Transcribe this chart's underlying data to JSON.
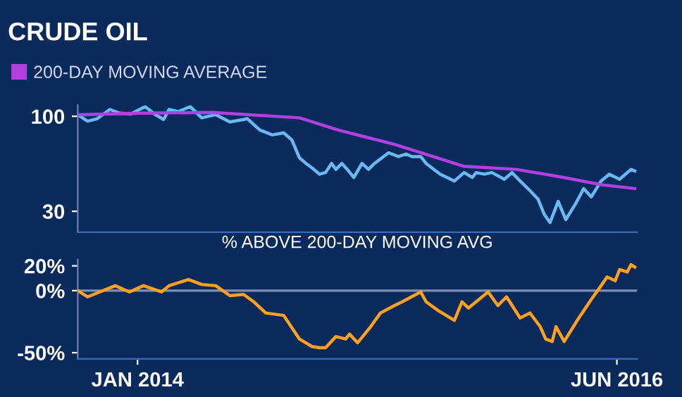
{
  "chart_data": [
    {
      "type": "line",
      "title": "CRUDE OIL",
      "log": true,
      "legend": "top left",
      "tick_labels": "y",
      "xlim": [
        "2013-09-13",
        "2016-07-08"
      ],
      "ylim": [
        23,
        115
      ],
      "yticks": [
        30,
        100
      ],
      "series": [
        {
          "color": "#6ab8f5",
          "x": [
            "2013-09-13",
            "2013-10-01",
            "2013-10-19",
            "2013-11-11",
            "2013-11-29",
            "2013-12-20",
            "2014-01-15",
            "2014-02-03",
            "2014-02-18",
            "2014-02-28",
            "2014-03-17",
            "2014-04-08",
            "2014-04-29",
            "2014-05-25",
            "2014-06-20",
            "2014-07-15",
            "2014-07-22",
            "2014-08-14",
            "2014-09-06",
            "2014-09-27",
            "2014-10-12",
            "2014-10-26",
            "2014-11-07",
            "2014-11-18",
            "2014-12-02",
            "2014-12-13",
            "2014-12-24",
            "2015-01-01",
            "2015-01-12",
            "2015-01-22",
            "2015-02-03",
            "2015-02-18",
            "2015-03-02",
            "2015-03-13",
            "2015-04-08",
            "2015-04-26",
            "2015-05-10",
            "2015-05-21",
            "2015-06-06",
            "2015-06-16",
            "2015-07-12",
            "2015-08-07",
            "2015-08-25",
            "2015-09-09",
            "2015-09-16",
            "2015-10-01",
            "2015-10-15",
            "2015-11-07",
            "2015-11-21",
            "2015-12-06",
            "2015-12-24",
            "2016-01-08",
            "2016-01-19",
            "2016-01-30",
            "2016-02-14",
            "2016-02-28",
            "2016-03-17",
            "2016-04-01",
            "2016-04-15",
            "2016-05-03",
            "2016-05-18",
            "2016-06-06",
            "2016-06-27",
            "2016-07-04"
          ],
          "values": [
            102,
            94,
            97,
            109,
            104,
            103,
            113,
            102,
            96,
            109,
            106,
            113,
            98,
            102,
            93,
            96,
            97,
            84,
            79,
            81,
            74,
            59,
            55,
            52,
            48,
            49,
            55,
            51,
            55,
            51,
            46,
            55,
            51,
            55,
            63,
            60,
            62,
            60,
            60,
            55,
            48,
            44,
            49,
            46,
            49,
            48,
            49,
            45,
            49,
            44,
            39,
            35,
            29,
            26,
            34,
            27,
            33,
            40,
            36,
            44,
            48,
            45,
            51,
            50
          ]
        },
        {
          "name": "200-DAY MOVING AVERAGE",
          "color": "#b040e0",
          "x": [
            "2013-09-13",
            "2014-01-08",
            "2014-05-18",
            "2014-10-26",
            "2015-01-05",
            "2015-04-19",
            "2015-08-25",
            "2015-11-29",
            "2016-02-25",
            "2016-05-03",
            "2016-07-04"
          ],
          "values": [
            102,
            104,
            105,
            98,
            84,
            70,
            53,
            51,
            46,
            42,
            40
          ]
        }
      ]
    },
    {
      "type": "line",
      "title": "% ABOVE 200-DAY MOVING AVG",
      "xlim": [
        "2013-09-13",
        "2016-07-08"
      ],
      "ylim": [
        -55,
        25
      ],
      "xticks": [
        {
          "value": "2014-01-01",
          "label": "JAN 2014"
        },
        {
          "value": "2016-06-01",
          "label": "JUN 2016"
        }
      ],
      "yticks": [
        {
          "value": -50,
          "label": "-50%"
        },
        {
          "value": 0,
          "label": "0%"
        },
        {
          "value": 20,
          "label": "20%"
        }
      ],
      "ref_lines": [
        {
          "axis": "y",
          "value": 0,
          "color": "#8090b0"
        }
      ],
      "series": [
        {
          "color": "#ffa020",
          "x": [
            "2013-09-13",
            "2013-10-01",
            "2013-11-21",
            "2013-12-17",
            "2014-01-12",
            "2014-02-14",
            "2014-02-28",
            "2014-04-05",
            "2014-04-29",
            "2014-05-25",
            "2014-06-20",
            "2014-07-15",
            "2014-08-03",
            "2014-08-25",
            "2014-09-27",
            "2014-10-26",
            "2014-11-18",
            "2014-12-02",
            "2014-12-13",
            "2015-01-01",
            "2015-01-19",
            "2015-01-26",
            "2015-02-10",
            "2015-03-06",
            "2015-03-24",
            "2015-04-19",
            "2015-05-03",
            "2015-06-06",
            "2015-06-16",
            "2015-07-08",
            "2015-08-07",
            "2015-08-21",
            "2015-09-02",
            "2015-10-08",
            "2015-10-26",
            "2015-11-11",
            "2015-12-06",
            "2015-12-24",
            "2016-01-12",
            "2016-01-22",
            "2016-02-03",
            "2016-02-10",
            "2016-02-25",
            "2016-03-20",
            "2016-04-15",
            "2016-05-03",
            "2016-05-14",
            "2016-05-29",
            "2016-06-06",
            "2016-06-20",
            "2016-06-27",
            "2016-07-04"
          ],
          "values": [
            0,
            -5,
            4,
            -1,
            4,
            -1,
            4,
            9,
            5,
            4,
            -4,
            -3,
            -9,
            -18,
            -20,
            -39,
            -45,
            -46,
            -46,
            -37,
            -39,
            -35,
            -42,
            -29,
            -18,
            -12,
            -9,
            -1,
            -9,
            -16,
            -24,
            -9,
            -14,
            -1,
            -12,
            -5,
            -22,
            -18,
            -29,
            -39,
            -41,
            -29,
            -41,
            -24,
            -7,
            4,
            11,
            8,
            17,
            15,
            21,
            19
          ]
        }
      ]
    }
  ]
}
